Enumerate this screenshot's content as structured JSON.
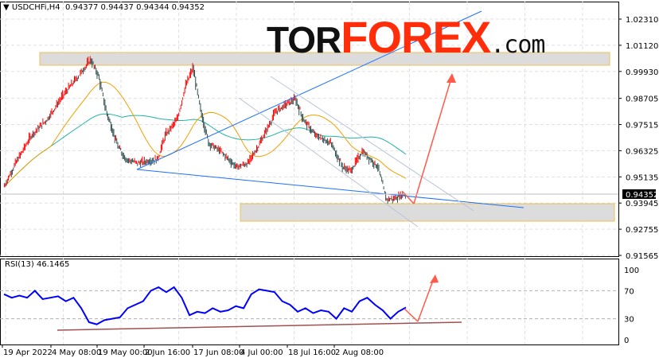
{
  "header": {
    "symbol": "USDCHFi,H4",
    "open": "0.94377",
    "high": "0.94437",
    "low": "0.94344",
    "close": "0.94352"
  },
  "logo": {
    "part1": "TOR",
    "part2": "FOREX",
    "part3": ".com"
  },
  "colors": {
    "bull": "#ff0000",
    "bear": "#2f4f4f",
    "ma_slow": "#20b2aa",
    "ma_fast": "#f0a000",
    "rsi": "#0000ff",
    "trend": "#1e6fff",
    "arrow": "#ff5a4a",
    "zone_border": "#f0c050"
  },
  "chart_data": [
    {
      "type": "candlestick",
      "title": "USDCHFi,H4",
      "ylim": [
        0.91565,
        1.0231
      ],
      "y_ticks": [
        "1.02310",
        "1.01120",
        "0.99930",
        "0.98705",
        "0.97515",
        "0.96325",
        "0.95135",
        "0.93945",
        "0.92755",
        "0.91565"
      ],
      "current_price": "0.94352",
      "x_ticks": [
        "19 Apr 2022",
        "4 May 08:00",
        "19 May 00:00",
        "2 Jun 16:00",
        "17 Jun 08:00",
        "4 Jul 00:00",
        "18 Jul 16:00",
        "2 Aug 08:00"
      ],
      "close_path": [
        [
          0,
          0.9468
        ],
        [
          3,
          0.9576
        ],
        [
          7,
          0.9703
        ],
        [
          11,
          0.9775
        ],
        [
          15,
          0.9884
        ],
        [
          19,
          0.9974
        ],
        [
          22,
          1.0047
        ],
        [
          24,
          0.9974
        ],
        [
          26,
          0.9811
        ],
        [
          29,
          0.9649
        ],
        [
          31,
          0.9594
        ],
        [
          34,
          0.9576
        ],
        [
          39,
          0.9594
        ],
        [
          41,
          0.9703
        ],
        [
          44,
          0.9775
        ],
        [
          46,
          0.992
        ],
        [
          48,
          1.001
        ],
        [
          50,
          0.9811
        ],
        [
          52,
          0.9667
        ],
        [
          55,
          0.963
        ],
        [
          59,
          0.9558
        ],
        [
          62,
          0.9576
        ],
        [
          65,
          0.9667
        ],
        [
          69,
          0.9811
        ],
        [
          72,
          0.9848
        ],
        [
          74,
          0.9866
        ],
        [
          76,
          0.9775
        ],
        [
          79,
          0.9703
        ],
        [
          83,
          0.9667
        ],
        [
          86,
          0.9558
        ],
        [
          88,
          0.954
        ],
        [
          91,
          0.963
        ],
        [
          93,
          0.9594
        ],
        [
          95,
          0.9558
        ],
        [
          97,
          0.9413
        ],
        [
          99,
          0.9413
        ],
        [
          101,
          0.9431
        ],
        [
          102,
          0.9435
        ]
      ]
    },
    {
      "type": "line",
      "title": "RSI(13) 46.1465",
      "ylim": [
        0,
        100
      ],
      "y_ticks": [
        "100",
        "70",
        "30",
        "0"
      ],
      "levels": [
        70,
        30
      ],
      "values": [
        65,
        60,
        63,
        60,
        70,
        58,
        60,
        62,
        55,
        60,
        45,
        25,
        22,
        28,
        30,
        32,
        45,
        50,
        55,
        70,
        75,
        68,
        75,
        60,
        35,
        40,
        38,
        45,
        40,
        42,
        48,
        45,
        65,
        72,
        70,
        68,
        55,
        50,
        40,
        45,
        38,
        42,
        40,
        30,
        45,
        40,
        55,
        60,
        50,
        42,
        30,
        40,
        46
      ]
    }
  ]
}
